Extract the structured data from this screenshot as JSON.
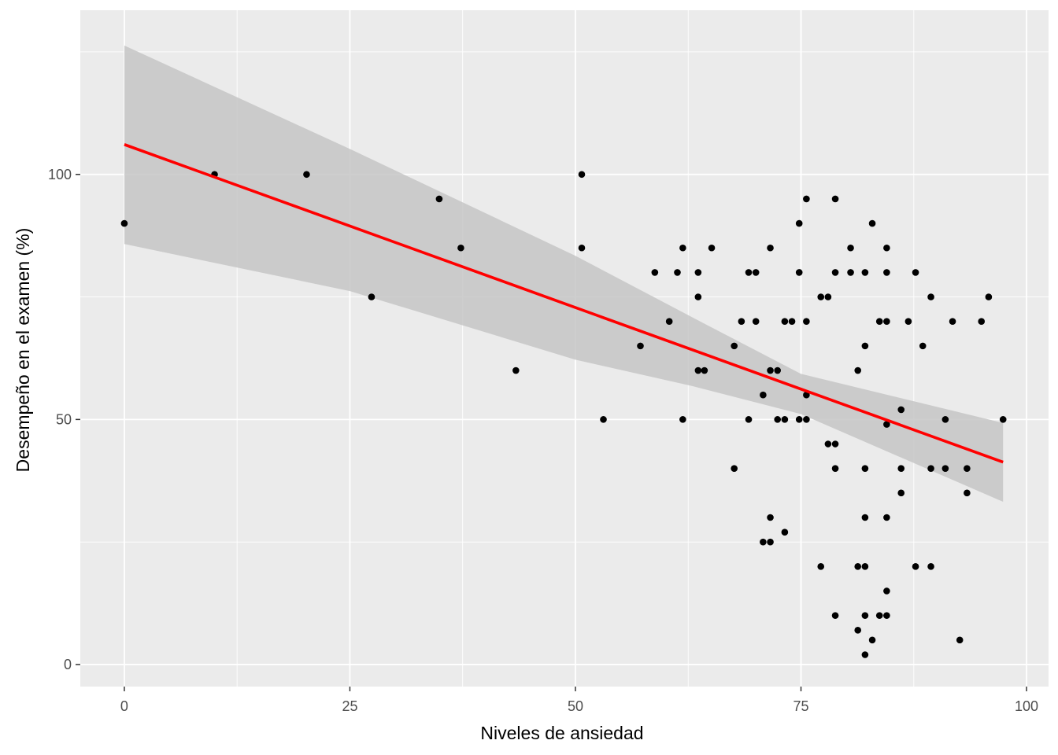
{
  "chart_data": {
    "type": "scatter",
    "title": "",
    "xlabel": "Niveles de ansiedad",
    "ylabel": "Desempeño en el examen (%)",
    "xlim": [
      -4.88,
      102.44
    ],
    "ylim": [
      -4.5,
      133.5
    ],
    "x_ticks": [
      0,
      25,
      50,
      75,
      100
    ],
    "y_ticks": [
      0,
      50,
      100
    ],
    "grid": true,
    "legend": "none",
    "colors": {
      "panel": "#ebebeb",
      "grid": "#ffffff",
      "points": "#000000",
      "fit_line": "#ff0000",
      "confidence_band": "#c6c6c6"
    },
    "series": [
      {
        "type": "scatter",
        "points": [
          [
            0,
            90
          ],
          [
            10,
            100
          ],
          [
            20.2,
            100
          ],
          [
            27.4,
            75
          ],
          [
            34.9,
            95
          ],
          [
            37.3,
            85
          ],
          [
            43.4,
            60
          ],
          [
            50.7,
            100
          ],
          [
            50.7,
            85
          ],
          [
            53.1,
            50
          ],
          [
            57.2,
            65
          ],
          [
            58.8,
            80
          ],
          [
            60.4,
            70
          ],
          [
            61.3,
            80
          ],
          [
            61.9,
            85
          ],
          [
            61.9,
            50
          ],
          [
            63.6,
            80
          ],
          [
            63.6,
            75
          ],
          [
            63.6,
            60
          ],
          [
            64.3,
            60
          ],
          [
            65.1,
            85
          ],
          [
            67.6,
            65
          ],
          [
            67.6,
            40
          ],
          [
            68.4,
            70
          ],
          [
            69.2,
            80
          ],
          [
            69.2,
            50
          ],
          [
            70,
            80
          ],
          [
            70,
            70
          ],
          [
            70.8,
            55
          ],
          [
            70.8,
            25
          ],
          [
            71.6,
            85
          ],
          [
            71.6,
            60
          ],
          [
            71.6,
            30
          ],
          [
            71.6,
            25
          ],
          [
            72.4,
            60
          ],
          [
            72.4,
            50
          ],
          [
            73.2,
            70
          ],
          [
            73.2,
            50
          ],
          [
            73.2,
            27
          ],
          [
            74,
            70
          ],
          [
            74.8,
            90
          ],
          [
            74.8,
            80
          ],
          [
            74.8,
            50
          ],
          [
            75.6,
            95
          ],
          [
            75.6,
            70
          ],
          [
            75.6,
            55
          ],
          [
            75.6,
            50
          ],
          [
            77.2,
            75
          ],
          [
            77.2,
            20
          ],
          [
            78,
            75
          ],
          [
            78,
            45
          ],
          [
            78.8,
            95
          ],
          [
            78.8,
            80
          ],
          [
            78.8,
            45
          ],
          [
            78.8,
            40
          ],
          [
            78.8,
            10
          ],
          [
            80.5,
            85
          ],
          [
            80.5,
            80
          ],
          [
            81.3,
            60
          ],
          [
            81.3,
            20
          ],
          [
            81.3,
            7
          ],
          [
            82.1,
            80
          ],
          [
            82.1,
            65
          ],
          [
            82.1,
            40
          ],
          [
            82.1,
            30
          ],
          [
            82.1,
            20
          ],
          [
            82.1,
            10
          ],
          [
            82.1,
            2
          ],
          [
            82.9,
            90
          ],
          [
            82.9,
            5
          ],
          [
            83.7,
            70
          ],
          [
            83.7,
            10
          ],
          [
            84.5,
            85
          ],
          [
            84.5,
            80
          ],
          [
            84.5,
            70
          ],
          [
            84.5,
            49
          ],
          [
            84.5,
            30
          ],
          [
            84.5,
            15
          ],
          [
            84.5,
            10
          ],
          [
            86.1,
            52
          ],
          [
            86.1,
            40
          ],
          [
            86.1,
            35
          ],
          [
            86.9,
            70
          ],
          [
            87.7,
            80
          ],
          [
            87.7,
            20
          ],
          [
            88.5,
            65
          ],
          [
            89.4,
            75
          ],
          [
            89.4,
            40
          ],
          [
            89.4,
            20
          ],
          [
            91,
            50
          ],
          [
            91,
            40
          ],
          [
            91.8,
            70
          ],
          [
            92.6,
            5
          ],
          [
            93.4,
            40
          ],
          [
            93.4,
            35
          ],
          [
            95,
            70
          ],
          [
            95.8,
            75
          ],
          [
            97.4,
            50
          ]
        ]
      },
      {
        "type": "line",
        "points": [
          [
            0,
            106.1
          ],
          [
            97.4,
            41.3
          ]
        ]
      },
      {
        "type": "area",
        "upper": [
          [
            0,
            126.3
          ],
          [
            25,
            105.2
          ],
          [
            50,
            83.4
          ],
          [
            63,
            70.8
          ],
          [
            75,
            59.3
          ],
          [
            97.4,
            49.3
          ]
        ],
        "lower": [
          [
            0,
            85.8
          ],
          [
            25,
            76.2
          ],
          [
            50,
            62.2
          ],
          [
            63,
            56.8
          ],
          [
            75,
            51.1
          ],
          [
            97.4,
            33.2
          ]
        ]
      }
    ]
  }
}
